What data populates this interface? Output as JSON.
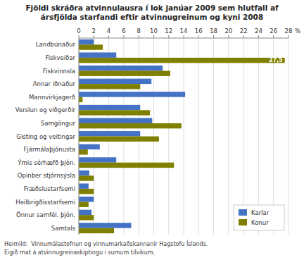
{
  "chart_data": {
    "type": "bar",
    "orientation": "horizontal",
    "title": "Fjöldi skráðra atvinnulausra í lok janúar 2009 sem hlutfall af\nársfjölda starfandi eftir atvinnugreinum og kyni 2008",
    "xlabel": "%",
    "categories": [
      "Landbúnaður",
      "Fiskveiðar",
      "Fiskvinnsla",
      "Annar iðnaður",
      "Mannvirkjagerð",
      "Verslun og viðgerðir",
      "Samgöngur",
      "Gisting og veitingar",
      "Fjármálaþjónusta",
      "Ýmis sérhæfð þjón.",
      "Opinber stjórnsýsla",
      "Fræðslustarfsemi",
      "Heilbrigðisstarfsemi",
      "Önnur samfél. þjón.",
      "Samtals"
    ],
    "series": [
      {
        "name": "Karlar",
        "color": "#4472c4",
        "values": [
          2.0,
          5.0,
          11.2,
          9.7,
          14.2,
          8.2,
          9.8,
          8.2,
          2.8,
          5.0,
          1.4,
          1.3,
          2.0,
          1.7,
          7.0
        ]
      },
      {
        "name": "Konur",
        "color": "#808000",
        "values": [
          3.2,
          27.5,
          12.2,
          8.2,
          0.5,
          9.5,
          13.7,
          10.7,
          1.2,
          12.7,
          2.0,
          2.0,
          1.3,
          2.0,
          4.7
        ],
        "value_labels": [
          null,
          "27,5",
          null,
          null,
          null,
          null,
          null,
          null,
          null,
          null,
          null,
          null,
          null,
          null,
          null
        ]
      }
    ],
    "xlim": [
      0,
      28
    ],
    "xticks": [
      0,
      2,
      4,
      6,
      8,
      10,
      12,
      14,
      16,
      18,
      20,
      22,
      24,
      26,
      28
    ],
    "grid": true,
    "legend": "lower right",
    "annotations": [
      "Heimild:  Vinnumálastofnun og vinnumarkaðskannanir Hagstofu Íslands.",
      "Eigið mat á atvinnugreinaskiptingu í sumum tilvikum."
    ]
  }
}
